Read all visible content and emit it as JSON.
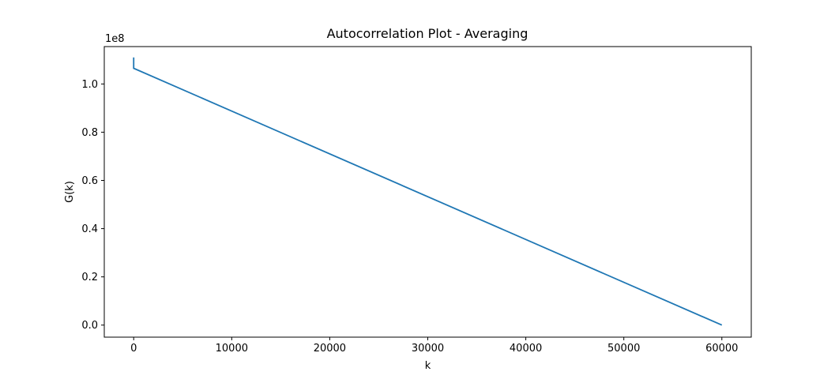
{
  "chart_data": {
    "type": "line",
    "title": "Autocorrelation Plot - Averaging",
    "xlabel": "k",
    "ylabel": "G(k)",
    "y_offset_label": "1e8",
    "xlim": [
      -3000,
      63000
    ],
    "ylim": [
      -0.05,
      1.155
    ],
    "x_ticks": [
      0,
      10000,
      20000,
      30000,
      40000,
      50000,
      60000
    ],
    "x_tick_labels": [
      "0",
      "10000",
      "20000",
      "30000",
      "40000",
      "50000",
      "60000"
    ],
    "y_ticks": [
      0.0,
      0.2,
      0.4,
      0.6,
      0.8,
      1.0
    ],
    "y_tick_labels": [
      "0.0",
      "0.2",
      "0.4",
      "0.6",
      "0.8",
      "1.0"
    ],
    "grid": false,
    "series": [
      {
        "color": "#1f77b4",
        "x": [
          0,
          0,
          60000
        ],
        "y": [
          1.11,
          1.065,
          0.0
        ]
      }
    ]
  }
}
